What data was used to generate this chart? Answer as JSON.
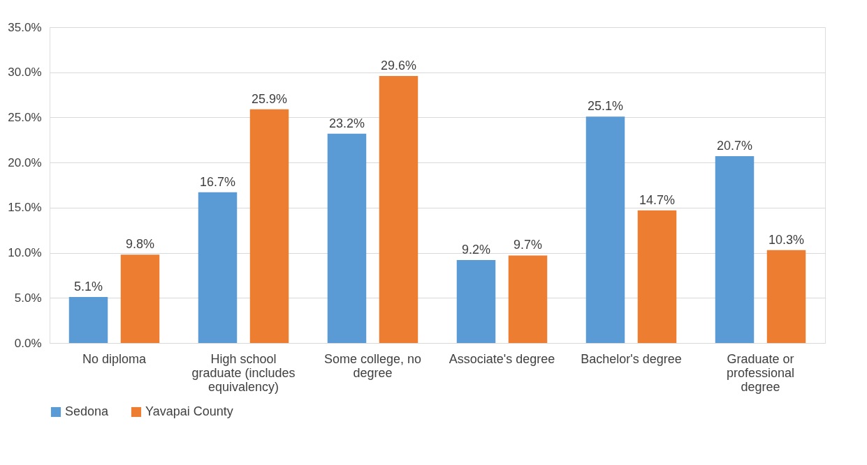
{
  "chart_data": {
    "type": "bar",
    "categories": [
      "No diploma",
      "High school graduate (includes equivalency)",
      "Some college, no degree",
      "Associate's degree",
      "Bachelor's degree",
      "Graduate or professional degree"
    ],
    "series": [
      {
        "name": "Sedona",
        "color": "#5b9bd5",
        "values": [
          5.1,
          16.7,
          23.2,
          9.2,
          25.1,
          20.7
        ],
        "value_labels": [
          "5.1%",
          "16.7%",
          "23.2%",
          "9.2%",
          "25.1%",
          "20.7%"
        ]
      },
      {
        "name": "Yavapai County",
        "color": "#ed7d31",
        "values": [
          9.8,
          25.9,
          29.6,
          9.7,
          14.7,
          10.3
        ],
        "value_labels": [
          "9.8%",
          "25.9%",
          "29.6%",
          "9.7%",
          "14.7%",
          "10.3%"
        ]
      }
    ],
    "ylim": [
      0,
      35
    ],
    "yticks": [
      {
        "value": 0,
        "label": "0.0%"
      },
      {
        "value": 5,
        "label": "5.0%"
      },
      {
        "value": 10,
        "label": "10.0%"
      },
      {
        "value": 15,
        "label": "15.0%"
      },
      {
        "value": 20,
        "label": "20.0%"
      },
      {
        "value": 25,
        "label": "25.0%"
      },
      {
        "value": 30,
        "label": "30.0%"
      },
      {
        "value": 35,
        "label": "35.0%"
      }
    ],
    "grid": "y",
    "legend": "bottom"
  }
}
